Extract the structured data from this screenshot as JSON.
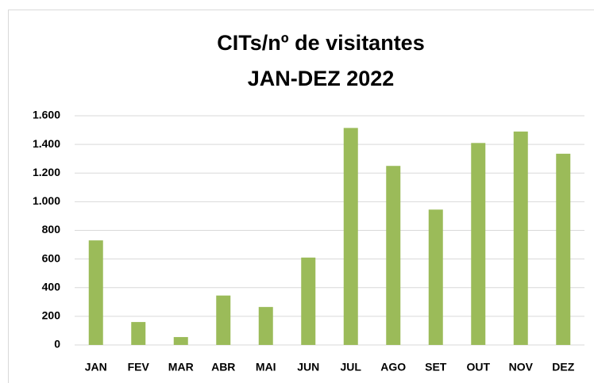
{
  "chart_data": {
    "type": "bar",
    "title": "CITs/nº de visitantes",
    "subtitle": "JAN-DEZ 2022",
    "categories": [
      "JAN",
      "FEV",
      "MAR",
      "ABR",
      "MAI",
      "JUN",
      "JUL",
      "AGO",
      "SET",
      "OUT",
      "NOV",
      "DEZ"
    ],
    "values": [
      730,
      160,
      55,
      345,
      265,
      610,
      1515,
      1250,
      945,
      1410,
      1490,
      1335
    ],
    "color": "#9bbb59",
    "ylim": [
      0,
      1600
    ],
    "yticks": [
      0,
      200,
      400,
      600,
      800,
      {
        "value": 1000,
        "label": "1.000"
      },
      {
        "value": 1200,
        "label": "1.200"
      },
      {
        "value": 1400,
        "label": "1.400"
      },
      {
        "value": 1600,
        "label": "1.600"
      }
    ],
    "grid": true
  }
}
